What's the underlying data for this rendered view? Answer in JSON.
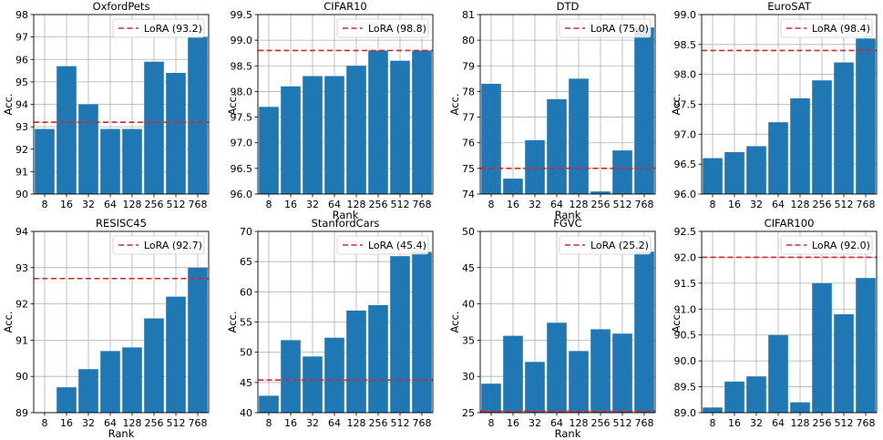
{
  "chart_data": [
    {
      "type": "bar",
      "title": "OxfordPets",
      "xlabel": "Rank",
      "ylabel": "Acc.",
      "categories": [
        "8",
        "16",
        "32",
        "64",
        "128",
        "256",
        "512",
        "768"
      ],
      "values": [
        92.9,
        95.7,
        94.0,
        92.9,
        92.9,
        95.9,
        95.4,
        97.0
      ],
      "ylim": [
        90,
        98
      ],
      "yticks": [
        "90",
        "91",
        "92",
        "93",
        "94",
        "95",
        "96",
        "97",
        "98"
      ],
      "baseline": {
        "value": 93.2,
        "label": "LoRA (93.2)"
      },
      "grid": true,
      "legend_position": "top-right",
      "show_xlabel": false
    },
    {
      "type": "bar",
      "title": "CIFAR10",
      "xlabel": "Rank",
      "ylabel": "Acc.",
      "categories": [
        "8",
        "16",
        "32",
        "64",
        "128",
        "256",
        "512",
        "768"
      ],
      "values": [
        97.7,
        98.1,
        98.3,
        98.3,
        98.5,
        98.8,
        98.6,
        98.8
      ],
      "ylim": [
        96.0,
        99.5
      ],
      "yticks": [
        "96.0",
        "96.5",
        "97.0",
        "97.5",
        "98.0",
        "98.5",
        "99.0",
        "99.5"
      ],
      "baseline": {
        "value": 98.8,
        "label": "LoRA (98.8)"
      },
      "grid": true,
      "legend_position": "top-right",
      "show_xlabel": true
    },
    {
      "type": "bar",
      "title": "DTD",
      "xlabel": "Rank",
      "ylabel": "Acc.",
      "categories": [
        "8",
        "16",
        "32",
        "64",
        "128",
        "256",
        "512",
        "768"
      ],
      "values": [
        78.3,
        74.6,
        76.1,
        77.7,
        78.5,
        74.1,
        75.7,
        80.5
      ],
      "ylim": [
        74,
        81
      ],
      "yticks": [
        "74",
        "75",
        "76",
        "77",
        "78",
        "79",
        "80",
        "81"
      ],
      "baseline": {
        "value": 75.0,
        "label": "LoRA (75.0)"
      },
      "grid": true,
      "legend_position": "top-right",
      "show_xlabel": true
    },
    {
      "type": "bar",
      "title": "EuroSAT",
      "xlabel": "Rank",
      "ylabel": "Acc.",
      "categories": [
        "8",
        "16",
        "32",
        "64",
        "128",
        "256",
        "512",
        "768"
      ],
      "values": [
        96.6,
        96.7,
        96.8,
        97.2,
        97.6,
        97.9,
        98.2,
        98.6
      ],
      "ylim": [
        96.0,
        99.0
      ],
      "yticks": [
        "96.0",
        "96.5",
        "97.0",
        "97.5",
        "98.0",
        "98.5",
        "99.0"
      ],
      "baseline": {
        "value": 98.4,
        "label": "LoRA (98.4)"
      },
      "grid": true,
      "legend_position": "top-right",
      "show_xlabel": false
    },
    {
      "type": "bar",
      "title": "RESISC45",
      "xlabel": "Rank",
      "ylabel": "Acc.",
      "categories": [
        "8",
        "16",
        "32",
        "64",
        "128",
        "256",
        "512",
        "768"
      ],
      "values": [
        88.9,
        89.7,
        90.2,
        90.7,
        90.8,
        91.6,
        92.2,
        93.0
      ],
      "ylim": [
        89,
        94
      ],
      "yticks": [
        "89",
        "90",
        "91",
        "92",
        "93",
        "94"
      ],
      "baseline": {
        "value": 92.7,
        "label": "LoRA (92.7)"
      },
      "grid": true,
      "legend_position": "top-right",
      "show_xlabel": true
    },
    {
      "type": "bar",
      "title": "StanfordCars",
      "xlabel": "Rank",
      "ylabel": "Acc.",
      "categories": [
        "8",
        "16",
        "32",
        "64",
        "128",
        "256",
        "512",
        "768"
      ],
      "values": [
        42.8,
        52.0,
        49.3,
        52.4,
        56.9,
        57.8,
        65.9,
        66.6
      ],
      "ylim": [
        40,
        70
      ],
      "yticks": [
        "40",
        "45",
        "50",
        "55",
        "60",
        "65",
        "70"
      ],
      "baseline": {
        "value": 45.4,
        "label": "LoRA (45.4)"
      },
      "grid": true,
      "legend_position": "top-right",
      "show_xlabel": false
    },
    {
      "type": "bar",
      "title": "FGVC",
      "xlabel": "Rank",
      "ylabel": "Acc.",
      "categories": [
        "8",
        "16",
        "32",
        "64",
        "128",
        "256",
        "512",
        "768"
      ],
      "values": [
        29.0,
        35.6,
        32.0,
        37.4,
        33.5,
        36.5,
        35.9,
        47.2
      ],
      "ylim": [
        25,
        50
      ],
      "yticks": [
        "25",
        "30",
        "35",
        "40",
        "45",
        "50"
      ],
      "baseline": {
        "value": 25.2,
        "label": "LoRA (25.2)"
      },
      "grid": true,
      "legend_position": "top-right",
      "show_xlabel": true
    },
    {
      "type": "bar",
      "title": "CIFAR100",
      "xlabel": "Rank",
      "ylabel": "Acc.",
      "categories": [
        "8",
        "16",
        "32",
        "64",
        "128",
        "256",
        "512",
        "768"
      ],
      "values": [
        89.1,
        89.6,
        89.7,
        90.5,
        89.2,
        91.5,
        90.9,
        91.6
      ],
      "ylim": [
        89.0,
        92.5
      ],
      "yticks": [
        "89.0",
        "89.5",
        "90.0",
        "90.5",
        "91.0",
        "91.5",
        "92.0",
        "92.5"
      ],
      "baseline": {
        "value": 92.0,
        "label": "LoRA (92.0)"
      },
      "grid": true,
      "legend_position": "top-right",
      "show_xlabel": false
    }
  ]
}
